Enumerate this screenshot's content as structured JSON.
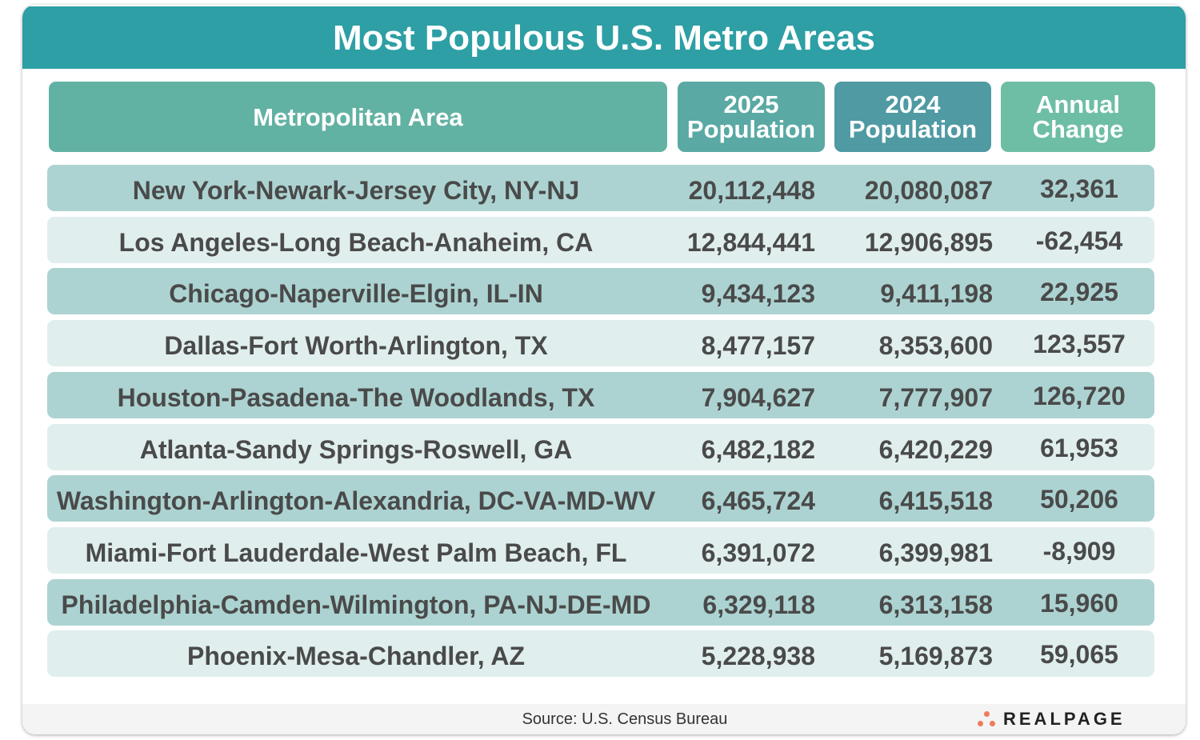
{
  "title": "Most Populous U.S. Metro Areas",
  "colors": {
    "title_bar": "#2d9fa5",
    "header_area": "#62b2a3",
    "header_2025": "#5aa9a4",
    "header_2024": "#4f9aa3",
    "header_change": "#6ebea5",
    "row_dark": "#acd3d1",
    "row_light": "#e0efee",
    "logo_dots": "#ee7b5c"
  },
  "chart_data": {
    "type": "table",
    "title": "Most Populous U.S. Metro Areas",
    "columns": [
      "Metropolitan Area",
      "2025\nPopulation",
      "2024\nPopulation",
      "Annual\nChange"
    ],
    "rows": [
      [
        "New York-Newark-Jersey City, NY-NJ",
        "20,112,448",
        "20,080,087",
        "32,361"
      ],
      [
        "Los Angeles-Long Beach-Anaheim, CA",
        "12,844,441",
        "12,906,895",
        "-62,454"
      ],
      [
        "Chicago-Naperville-Elgin, IL-IN",
        "9,434,123",
        "9,411,198",
        "22,925"
      ],
      [
        "Dallas-Fort Worth-Arlington, TX",
        "8,477,157",
        "8,353,600",
        "123,557"
      ],
      [
        "Houston-Pasadena-The Woodlands, TX",
        "7,904,627",
        "7,777,907",
        "126,720"
      ],
      [
        "Atlanta-Sandy Springs-Roswell, GA",
        "6,482,182",
        "6,420,229",
        "61,953"
      ],
      [
        "Washington-Arlington-Alexandria, DC-VA-MD-WV",
        "6,465,724",
        "6,415,518",
        "50,206"
      ],
      [
        "Miami-Fort Lauderdale-West Palm Beach, FL",
        "6,391,072",
        "6,399,981",
        "-8,909"
      ],
      [
        "Philadelphia-Camden-Wilmington, PA-NJ-DE-MD",
        "6,329,118",
        "6,313,158",
        "15,960"
      ],
      [
        "Phoenix-Mesa-Chandler, AZ",
        "5,228,938",
        "5,169,873",
        "59,065"
      ]
    ]
  },
  "footer": {
    "source": "Source: U.S. Census Bureau",
    "logo": "REALPAGE"
  }
}
